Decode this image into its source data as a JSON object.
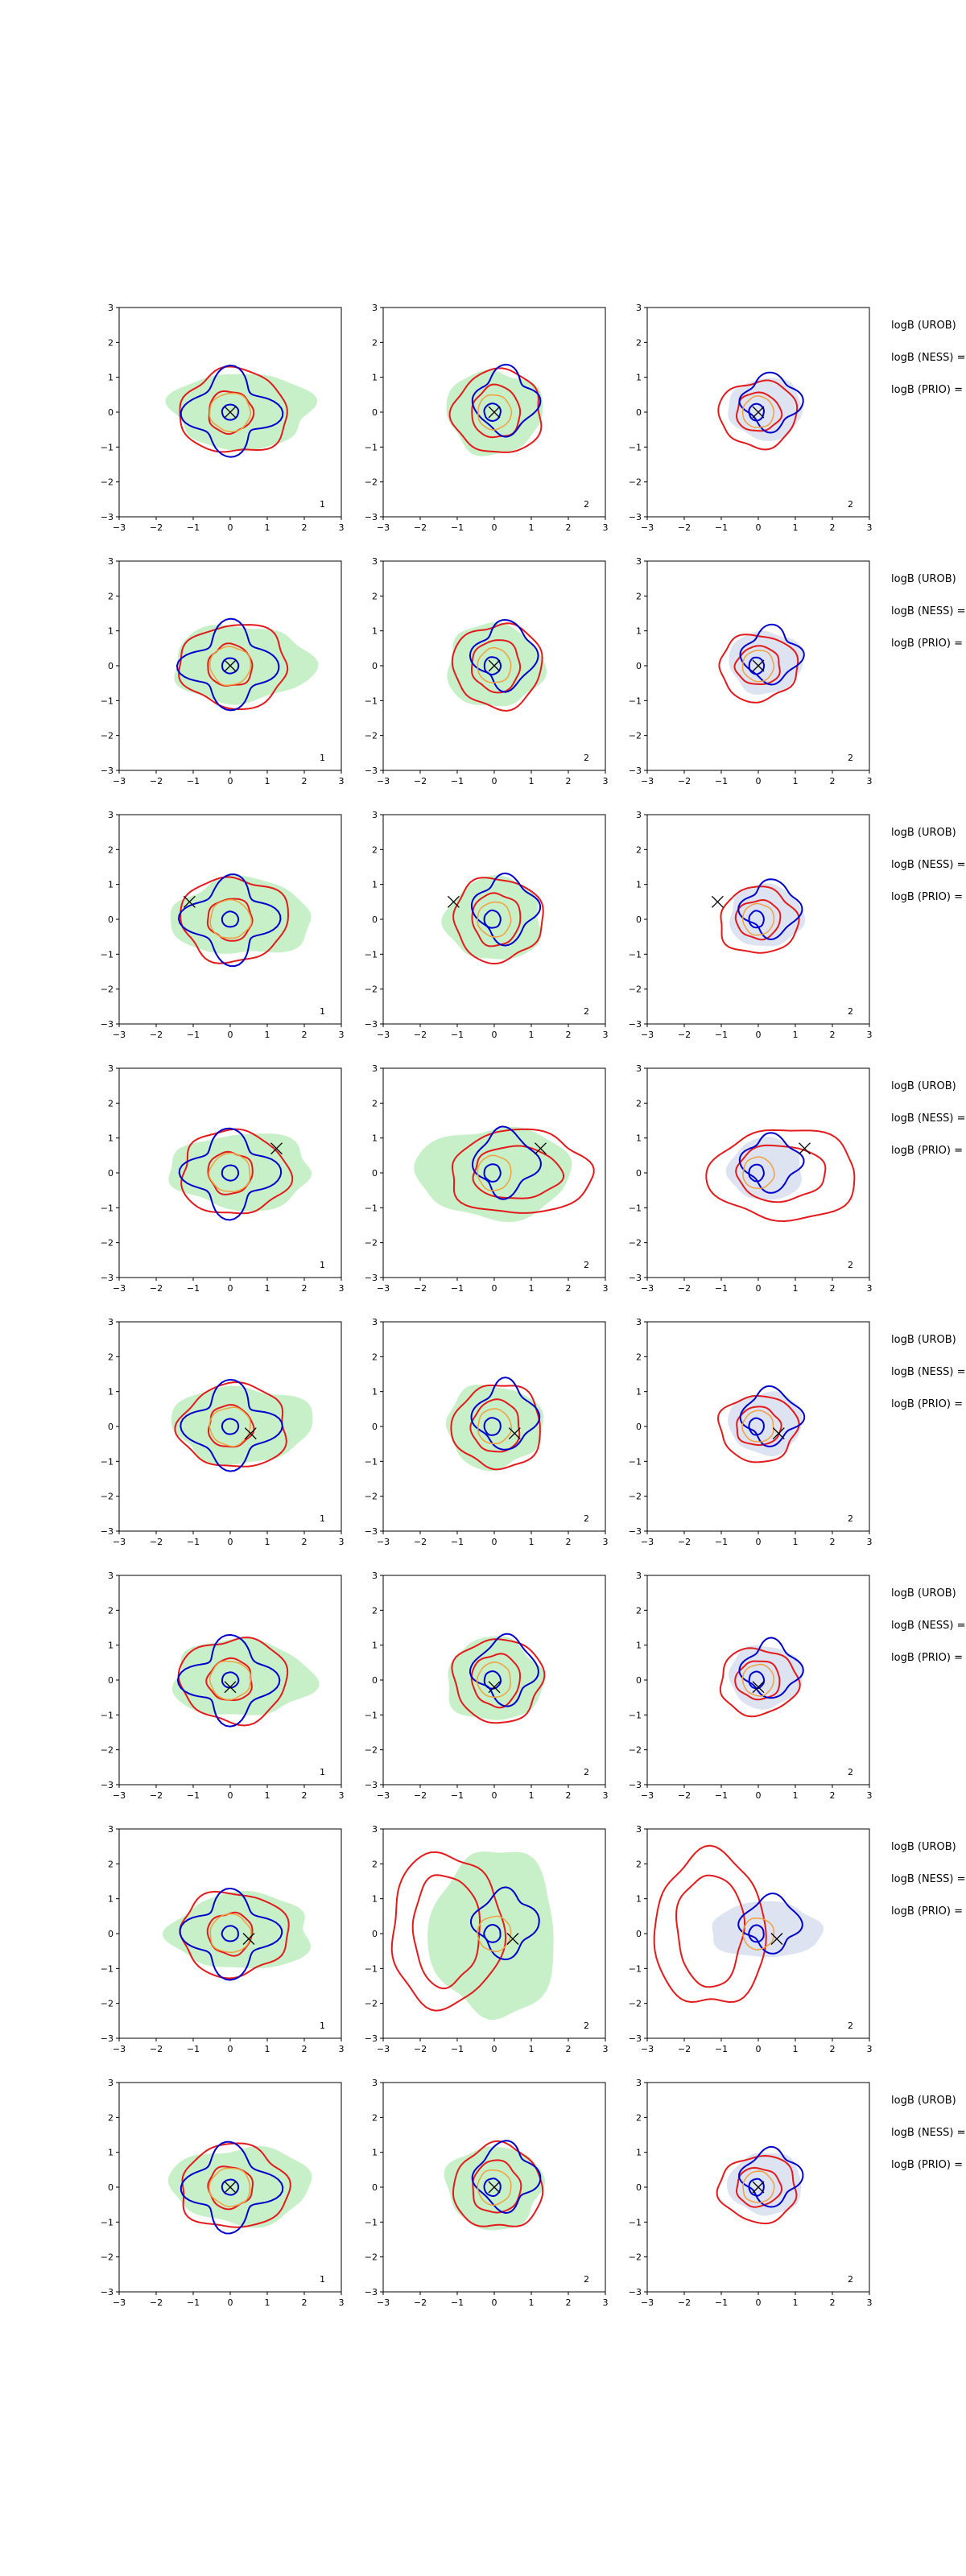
{
  "chart_data": {
    "type": "contour-grid",
    "rows": 8,
    "columns": 3,
    "xlim": [
      -3,
      3
    ],
    "ylim": [
      -3,
      3
    ],
    "xticks": [
      -3,
      -2,
      -1,
      0,
      1,
      2,
      3
    ],
    "yticks": [
      -3,
      -2,
      -1,
      0,
      1,
      2,
      3
    ],
    "column_labels": [
      "1",
      "2",
      "2"
    ],
    "row_labels": [
      "logB (UROB)",
      "logB (NESS) =",
      "logB (PRIO) ="
    ],
    "colors": {
      "fill": "#c8f0c8",
      "fill_col3": "#dde3f0",
      "red": "#e31a1c",
      "blue": "#0000cc",
      "orange": "#f0a040",
      "marker": "#000000"
    },
    "markers": [
      {
        "x": 0.0,
        "y": 0.0
      },
      {
        "x": 0.0,
        "y": 0.0
      },
      {
        "x": -1.1,
        "y": 0.5
      },
      {
        "x": 1.25,
        "y": 0.7
      },
      {
        "x": 0.55,
        "y": -0.2
      },
      {
        "x": 0.0,
        "y": -0.2
      },
      {
        "x": 0.5,
        "y": -0.15
      },
      {
        "x": 0.0,
        "y": 0.0
      }
    ]
  }
}
